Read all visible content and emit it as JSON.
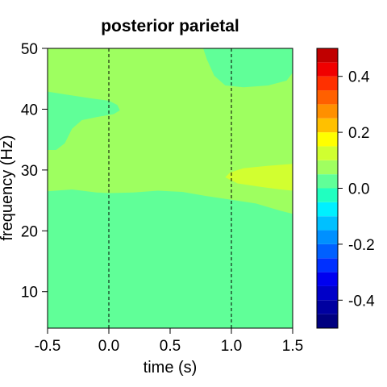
{
  "chart_data": {
    "type": "heatmap",
    "title": "posterior parietal",
    "xlabel": "time (s)",
    "ylabel": "frequency (Hz)",
    "xlim": [
      -0.5,
      1.5
    ],
    "ylim": [
      4,
      50
    ],
    "x_ticks": [
      -0.5,
      0.0,
      0.5,
      1.0,
      1.5
    ],
    "x_tick_labels": [
      "-0.5",
      "0.0",
      "0.5",
      "1.0",
      "1.5"
    ],
    "y_ticks": [
      10,
      20,
      30,
      40,
      50
    ],
    "y_tick_labels": [
      "10",
      "20",
      "30",
      "40",
      "50"
    ],
    "vertical_markers": [
      0.0,
      1.0
    ],
    "colorbar": {
      "range": [
        -0.5,
        0.5
      ],
      "levels": [
        {
          "low": -0.5,
          "high": -0.45,
          "color": "#000080"
        },
        {
          "low": -0.45,
          "high": -0.4,
          "color": "#0000A0"
        },
        {
          "low": -0.4,
          "high": -0.35,
          "color": "#0000C8"
        },
        {
          "low": -0.35,
          "high": -0.3,
          "color": "#0000F0"
        },
        {
          "low": -0.3,
          "high": -0.25,
          "color": "#0030FF"
        },
        {
          "low": -0.25,
          "high": -0.2,
          "color": "#0060FF"
        },
        {
          "low": -0.2,
          "high": -0.15,
          "color": "#0090FF"
        },
        {
          "low": -0.15,
          "high": -0.1,
          "color": "#00C0FF"
        },
        {
          "low": -0.1,
          "high": -0.05,
          "color": "#00F0FF"
        },
        {
          "low": -0.05,
          "high": 0.0,
          "color": "#20FFC0"
        },
        {
          "low": 0.0,
          "high": 0.05,
          "color": "#60FF98"
        },
        {
          "low": 0.05,
          "high": 0.1,
          "color": "#A0FF60"
        },
        {
          "low": 0.1,
          "high": 0.15,
          "color": "#D0FF30"
        },
        {
          "low": 0.15,
          "high": 0.2,
          "color": "#FFFF00"
        },
        {
          "low": 0.2,
          "high": 0.25,
          "color": "#FFC000"
        },
        {
          "low": 0.25,
          "high": 0.3,
          "color": "#FF9000"
        },
        {
          "low": 0.3,
          "high": 0.35,
          "color": "#FF6000"
        },
        {
          "low": 0.35,
          "high": 0.4,
          "color": "#FF3000"
        },
        {
          "low": 0.4,
          "high": 0.45,
          "color": "#F00000"
        },
        {
          "low": 0.45,
          "high": 0.5,
          "color": "#C00000"
        }
      ],
      "tick_values": [
        0.4,
        0.2,
        0.0,
        -0.2,
        -0.4
      ],
      "tick_labels": [
        "0.4",
        "0.2",
        "0.0",
        "-0.2",
        "-0.4"
      ]
    },
    "regions": [
      {
        "name": "",
        "value": 0.07,
        "color": "#9EFF60",
        "points": [
          [
            -0.5,
            50
          ],
          [
            1.5,
            50
          ],
          [
            1.5,
            4
          ],
          [
            -0.5,
            4
          ]
        ]
      },
      {
        "name": "",
        "value": 0.02,
        "color": "#60FF98",
        "points": [
          [
            -0.5,
            26.5
          ],
          [
            -0.3,
            26.8
          ],
          [
            -0.1,
            26.3
          ],
          [
            0.0,
            26.2
          ],
          [
            0.2,
            26.3
          ],
          [
            0.4,
            26.6
          ],
          [
            0.6,
            26.4
          ],
          [
            0.8,
            25.7
          ],
          [
            1.0,
            25.1
          ],
          [
            1.2,
            24.5
          ],
          [
            1.4,
            23.3
          ],
          [
            1.5,
            22.8
          ],
          [
            1.5,
            4
          ],
          [
            -0.5,
            4
          ]
        ]
      },
      {
        "name": "",
        "value": 0.02,
        "color": "#60FF98",
        "points": [
          [
            0.77,
            50
          ],
          [
            1.5,
            50
          ],
          [
            1.5,
            46.0
          ],
          [
            1.45,
            44.7
          ],
          [
            1.3,
            43.9
          ],
          [
            1.1,
            43.6
          ],
          [
            0.95,
            43.9
          ],
          [
            0.86,
            45.5
          ],
          [
            0.8,
            48.2
          ]
        ]
      },
      {
        "name": "",
        "value": 0.02,
        "color": "#60FF98",
        "points": [
          [
            -0.5,
            42.9
          ],
          [
            -0.35,
            42.4
          ],
          [
            -0.15,
            41.8
          ],
          [
            0.0,
            41.4
          ],
          [
            0.07,
            40.7
          ],
          [
            0.09,
            39.8
          ],
          [
            0.04,
            39.2
          ],
          [
            -0.1,
            38.7
          ],
          [
            -0.22,
            38.2
          ],
          [
            -0.3,
            36.8
          ],
          [
            -0.36,
            34.4
          ],
          [
            -0.43,
            33.3
          ],
          [
            -0.5,
            33.3
          ]
        ]
      },
      {
        "name": "",
        "value": 0.12,
        "color": "#D2FF30",
        "points": [
          [
            1.5,
            31.0
          ],
          [
            1.3,
            30.7
          ],
          [
            1.1,
            30.3
          ],
          [
            0.99,
            29.6
          ],
          [
            0.95,
            28.8
          ],
          [
            1.05,
            27.8
          ],
          [
            1.25,
            27.2
          ],
          [
            1.4,
            26.8
          ],
          [
            1.5,
            26.6
          ]
        ]
      }
    ]
  }
}
